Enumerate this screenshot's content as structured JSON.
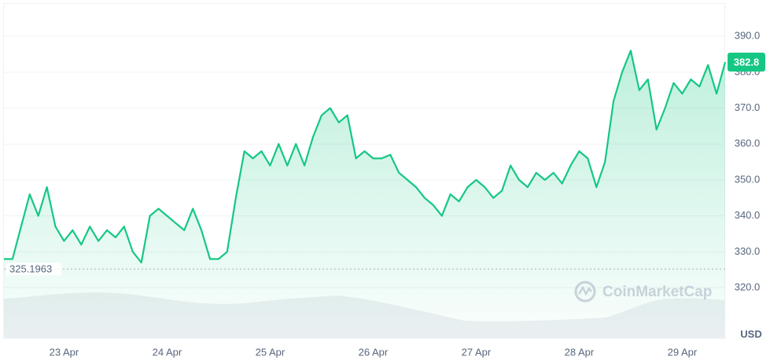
{
  "chart_data": {
    "type": "line",
    "categories": [
      null,
      null,
      null,
      null,
      null,
      null,
      null,
      "23 Apr",
      null,
      null,
      null,
      null,
      null,
      null,
      null,
      null,
      null,
      null,
      null,
      "24 Apr",
      null,
      null,
      null,
      null,
      null,
      null,
      null,
      null,
      null,
      null,
      null,
      "25 Apr",
      null,
      null,
      null,
      null,
      null,
      null,
      null,
      null,
      null,
      null,
      null,
      "26 Apr",
      null,
      null,
      null,
      null,
      null,
      null,
      null,
      null,
      null,
      null,
      null,
      "27 Apr",
      null,
      null,
      null,
      null,
      null,
      null,
      null,
      null,
      null,
      null,
      null,
      "28 Apr",
      null,
      null,
      null,
      null,
      null,
      null,
      null,
      null,
      null,
      null,
      null,
      "29 Apr",
      null,
      null,
      null,
      null,
      null
    ],
    "series": [
      {
        "name": null,
        "color": "#16c784",
        "values": [
          328,
          328,
          337,
          346,
          340,
          348,
          337,
          333,
          336,
          332,
          337,
          333,
          336,
          334,
          337,
          330,
          327,
          340,
          342,
          340,
          338,
          336,
          342,
          336,
          328,
          328,
          330,
          345,
          358,
          356,
          358,
          354,
          360,
          354,
          360,
          354,
          362,
          368,
          370,
          366,
          368,
          356,
          358,
          356,
          356,
          357,
          352,
          350,
          348,
          345,
          343,
          340,
          346,
          344,
          348,
          350,
          348,
          345,
          347,
          354,
          350,
          348,
          352,
          350,
          352,
          349,
          354,
          358,
          356,
          348,
          355,
          372,
          380,
          386,
          375,
          378,
          364,
          370,
          377,
          374,
          378,
          376,
          382,
          374,
          382.8
        ]
      }
    ],
    "ylim": [
      306,
      399
    ],
    "yticks": [
      {
        "value": 320,
        "label": "320.0"
      },
      {
        "value": 330,
        "label": "330.0"
      },
      {
        "value": 340,
        "label": "340.0"
      },
      {
        "value": 350,
        "label": "350.0"
      },
      {
        "value": 360,
        "label": "360.0"
      },
      {
        "value": 370,
        "label": "370.0"
      },
      {
        "value": 380,
        "label": "380.0"
      },
      {
        "value": 390,
        "label": "390.0"
      }
    ],
    "grid": true,
    "reference_line": 325.1963,
    "current_price": 382.8,
    "unit_label": "USD",
    "watermark": "CoinMarketCap"
  }
}
